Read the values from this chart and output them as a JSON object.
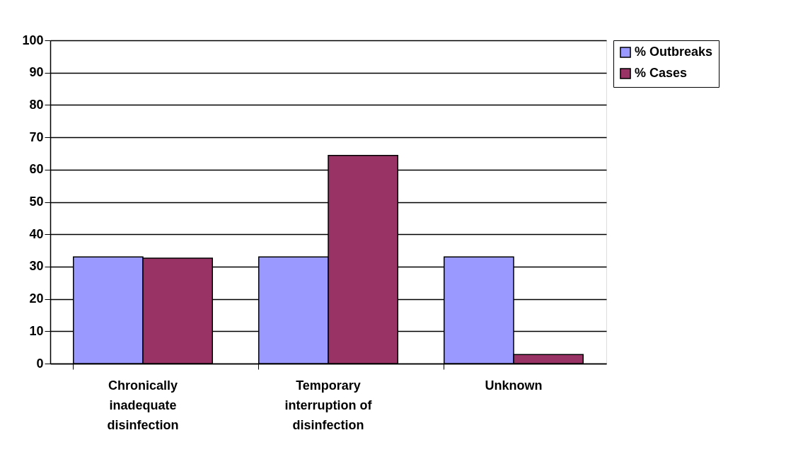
{
  "chart_data": {
    "type": "bar",
    "categories": [
      "Chronically inadequate disinfection",
      "Temporary interruption of disinfection",
      "Unknown"
    ],
    "series": [
      {
        "name": "% Outbreaks",
        "color": "#9999ff",
        "values": [
          33,
          33,
          33
        ]
      },
      {
        "name": "% Cases",
        "color": "#993366",
        "values": [
          32.6,
          64.4,
          2.8
        ]
      }
    ],
    "ylim": [
      0,
      100
    ],
    "yticks": [
      0,
      10,
      20,
      30,
      40,
      50,
      60,
      70,
      80,
      90,
      100
    ],
    "grid": "y",
    "legend": "right"
  }
}
